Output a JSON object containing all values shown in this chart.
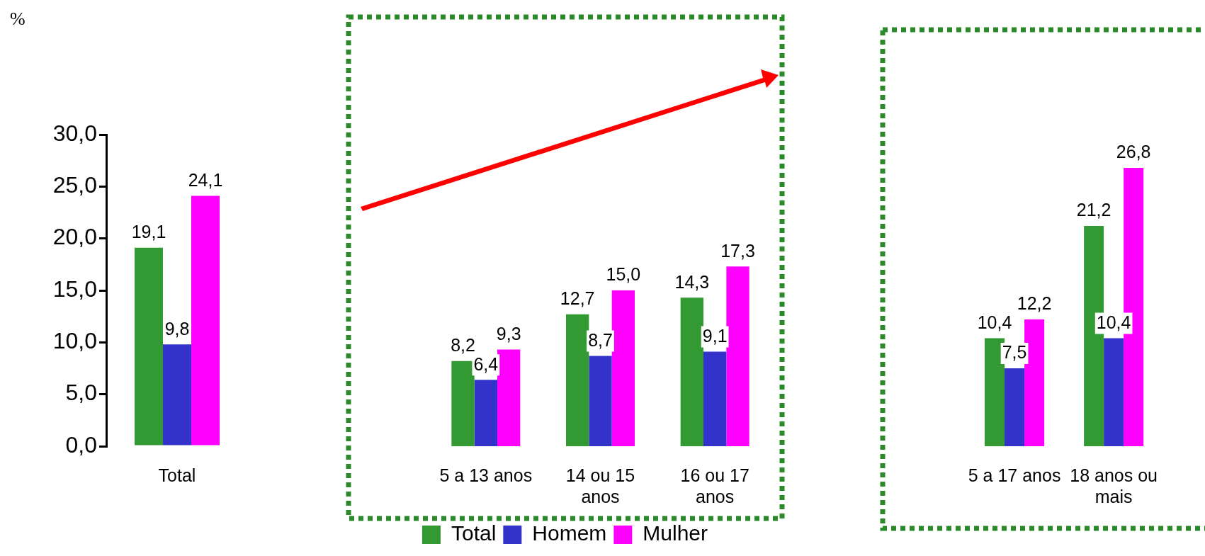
{
  "chart_data": [
    {
      "type": "bar",
      "ylabel": "%",
      "categories": [
        "Total"
      ],
      "ylim": [
        0,
        30
      ],
      "yticks": [
        {
          "value": 0,
          "label": "0,0"
        },
        {
          "value": 5,
          "label": "5,0"
        },
        {
          "value": 10,
          "label": "10,0"
        },
        {
          "value": 15,
          "label": "15,0"
        },
        {
          "value": 20,
          "label": "20,0"
        },
        {
          "value": 25,
          "label": "25,0"
        },
        {
          "value": 30,
          "label": "30,0"
        }
      ],
      "grid": false,
      "legend": false,
      "series": [
        {
          "color": "#339933",
          "values": [
            19.1
          ],
          "value_labels": [
            "19,1"
          ]
        },
        {
          "color": "#3333cc",
          "values": [
            9.8
          ],
          "value_labels": [
            "9,8"
          ]
        },
        {
          "color": "#ff00ff",
          "values": [
            24.1
          ],
          "value_labels": [
            "24,1"
          ]
        }
      ]
    },
    {
      "type": "bar",
      "categories": [
        "5 a 13 anos",
        "14 ou 15 anos",
        "16 ou 17 anos"
      ],
      "ylim": [
        0,
        30
      ],
      "tick_labels": "x",
      "grid": false,
      "legend": "bottom",
      "series": [
        {
          "name": "Total",
          "color": "#339933",
          "values": [
            8.2,
            12.7,
            14.3
          ],
          "value_labels": [
            "8,2",
            "12,7",
            "14,3"
          ]
        },
        {
          "name": "Homem",
          "color": "#3333cc",
          "values": [
            6.4,
            8.7,
            9.1
          ],
          "value_labels": [
            "6,4",
            "8,7",
            "9,1"
          ]
        },
        {
          "name": "Mulher",
          "color": "#ff00ff",
          "values": [
            9.3,
            15.0,
            17.3
          ],
          "value_labels": [
            "9,3",
            "15,0",
            "17,3"
          ]
        }
      ]
    },
    {
      "type": "bar",
      "categories": [
        "5 a 17 anos",
        "18 anos ou mais"
      ],
      "ylim": [
        0,
        30
      ],
      "tick_labels": "x",
      "grid": false,
      "legend": false,
      "series": [
        {
          "color": "#339933",
          "values": [
            10.4,
            21.2
          ],
          "value_labels": [
            "10,4",
            "21,2"
          ]
        },
        {
          "color": "#3333cc",
          "values": [
            7.5,
            10.4
          ],
          "value_labels": [
            "7,5",
            "10,4"
          ]
        },
        {
          "color": "#ff00ff",
          "values": [
            12.2,
            26.8
          ],
          "value_labels": [
            "12,2",
            "26,8"
          ]
        }
      ]
    }
  ]
}
